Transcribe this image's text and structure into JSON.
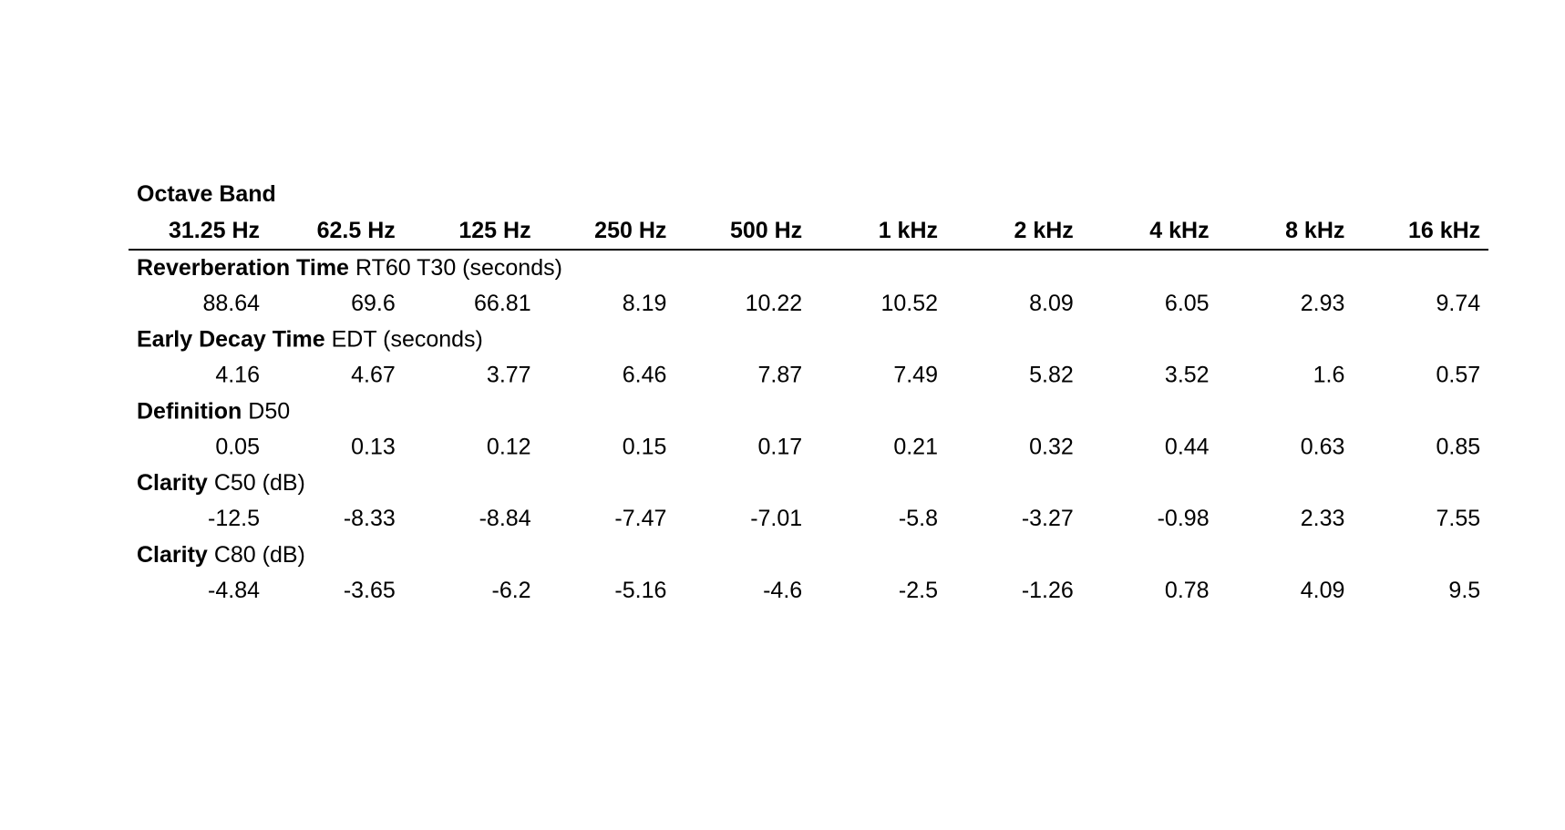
{
  "table": {
    "title": "Octave Band",
    "columns": [
      "31.25 Hz",
      "62.5 Hz",
      "125 Hz",
      "250 Hz",
      "500 Hz",
      "1 kHz",
      "2 kHz",
      "4 kHz",
      "8 kHz",
      "16 kHz"
    ],
    "sections": [
      {
        "label_bold": "Reverberation Time",
        "label_rest": "RT60 T30 (seconds)",
        "values": [
          88.64,
          69.6,
          66.81,
          8.19,
          10.22,
          10.52,
          8.09,
          6.05,
          2.93,
          9.74
        ]
      },
      {
        "label_bold": "Early Decay Time",
        "label_rest": "EDT (seconds)",
        "values": [
          4.16,
          4.67,
          3.77,
          6.46,
          7.87,
          7.49,
          5.82,
          3.52,
          1.6,
          0.57
        ]
      },
      {
        "label_bold": "Definition",
        "label_rest": "D50",
        "values": [
          0.05,
          0.13,
          0.12,
          0.15,
          0.17,
          0.21,
          0.32,
          0.44,
          0.63,
          0.85
        ]
      },
      {
        "label_bold": "Clarity",
        "label_rest": "C50 (dB)",
        "values": [
          -12.5,
          -8.33,
          -8.84,
          -7.47,
          -7.01,
          -5.8,
          -3.27,
          -0.98,
          2.33,
          7.55
        ]
      },
      {
        "label_bold": "Clarity",
        "label_rest": "C80 (dB)",
        "values": [
          -4.84,
          -3.65,
          -6.2,
          -5.16,
          -4.6,
          -2.5,
          -1.26,
          0.78,
          4.09,
          9.5
        ]
      }
    ]
  }
}
